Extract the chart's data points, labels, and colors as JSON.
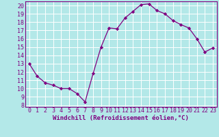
{
  "x": [
    0,
    1,
    2,
    3,
    4,
    5,
    6,
    7,
    8,
    9,
    10,
    11,
    12,
    13,
    14,
    15,
    16,
    17,
    18,
    19,
    20,
    21,
    22,
    23
  ],
  "y": [
    13,
    11.5,
    10.7,
    10.4,
    10.0,
    10.0,
    9.4,
    8.4,
    11.8,
    15.0,
    17.3,
    17.2,
    18.5,
    19.3,
    20.1,
    20.2,
    19.4,
    19.0,
    18.2,
    17.7,
    17.3,
    16.0,
    14.4,
    14.9
  ],
  "xlabel": "Windchill (Refroidissement éolien,°C)",
  "xlim": [
    -0.5,
    23.5
  ],
  "ylim": [
    7.8,
    20.5
  ],
  "yticks": [
    8,
    9,
    10,
    11,
    12,
    13,
    14,
    15,
    16,
    17,
    18,
    19,
    20
  ],
  "xticks": [
    0,
    1,
    2,
    3,
    4,
    5,
    6,
    7,
    8,
    9,
    10,
    11,
    12,
    13,
    14,
    15,
    16,
    17,
    18,
    19,
    20,
    21,
    22,
    23
  ],
  "line_color": "#800080",
  "marker": "D",
  "marker_size": 2.2,
  "bg_color": "#b3e8e8",
  "grid_color": "#ffffff",
  "tick_color": "#800080",
  "spine_color": "#800080",
  "xlabel_color": "#800080",
  "tick_fontsize": 6.0,
  "xlabel_fontsize": 6.5
}
